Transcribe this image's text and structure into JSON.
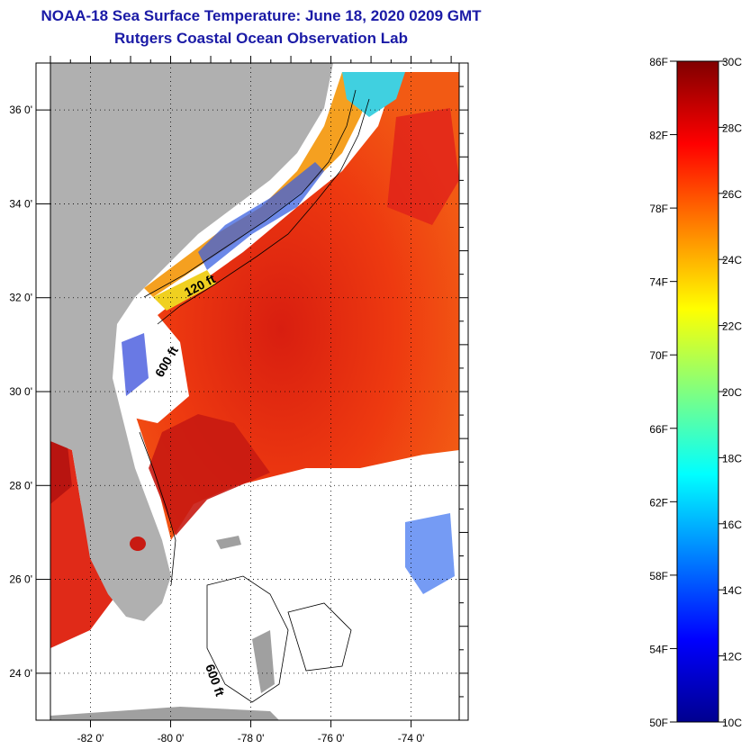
{
  "title": "NOAA-18 Sea Surface Temperature:  June 18, 2020 0209 GMT",
  "subtitle": "Rutgers Coastal Ocean Observation Lab",
  "map": {
    "lon_range": [
      -83,
      -72.8
    ],
    "lat_range": [
      23,
      37
    ],
    "lon_ticks": [
      {
        "value": -82,
        "label": "-82 0'"
      },
      {
        "value": -80,
        "label": "-80 0'"
      },
      {
        "value": -78,
        "label": "-78 0'"
      },
      {
        "value": -76,
        "label": "-76 0'"
      },
      {
        "value": -74,
        "label": "-74 0'"
      }
    ],
    "lat_ticks": [
      {
        "value": 36,
        "label": "36 0'"
      },
      {
        "value": 34,
        "label": "34 0'"
      },
      {
        "value": 32,
        "label": "32 0'"
      },
      {
        "value": 30,
        "label": "30 0'"
      },
      {
        "value": 28,
        "label": "28 0'"
      },
      {
        "value": 26,
        "label": "26 0'"
      },
      {
        "value": 24,
        "label": "24 0'"
      }
    ],
    "contour_labels": [
      "120 ft",
      "600 ft",
      "600 ft"
    ],
    "land_color": "#b0b0b0",
    "cloud_color": "#ffffff"
  },
  "colorbar": {
    "celsius_range": [
      10,
      30
    ],
    "fahrenheit_labels": [
      "86F",
      "82F",
      "78F",
      "74F",
      "70F",
      "66F",
      "62F",
      "58F",
      "54F",
      "50F"
    ],
    "celsius_labels": [
      "30C",
      "28C",
      "26C",
      "24C",
      "22C",
      "20C",
      "18C",
      "16C",
      "14C",
      "12C",
      "10C"
    ],
    "colors": [
      "#00008f",
      "#0000ff",
      "#0080ff",
      "#00ffff",
      "#80ff80",
      "#ffff00",
      "#ff8000",
      "#ff0000",
      "#800000"
    ]
  }
}
